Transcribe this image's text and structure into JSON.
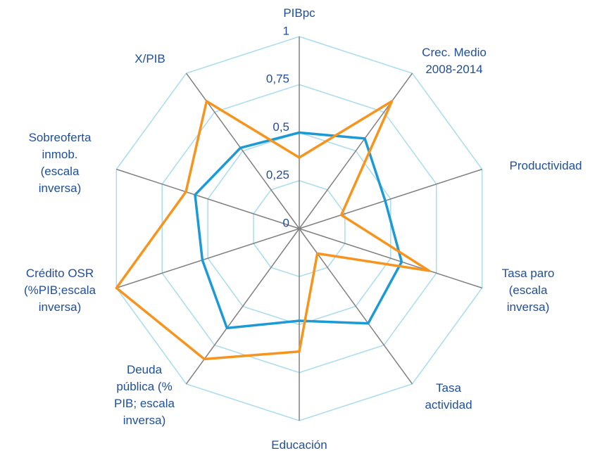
{
  "chart_data": {
    "type": "radar",
    "categories": [
      "PIBpc",
      "Crec. Medio\n2008-2014",
      "Productividad",
      "Tasa paro\n(escala\ninversa)",
      "Tasa\nactividad",
      "Educación",
      "Deuda\npública (%\nPIB; escala\ninversa)",
      "Crédito OSR\n(%PIB;escala\ninversa)",
      "Sobreoferta\ninmob.\n(escala\ninversa)",
      "X/PIB"
    ],
    "series": [
      {
        "color": "#1b9ad6",
        "values": [
          0.5,
          0.58,
          0.47,
          0.56,
          0.61,
          0.48,
          0.64,
          0.53,
          0.57,
          0.52
        ]
      },
      {
        "color": "#f7941d",
        "values": [
          0.37,
          0.82,
          0.23,
          0.71,
          0.16,
          0.64,
          0.84,
          1,
          0.62,
          0.82
        ]
      }
    ],
    "ylim": [
      0,
      1
    ],
    "yticks": [
      0,
      {
        "value": 0.25,
        "label": "0,25"
      },
      {
        "value": 0.5,
        "label": "0,5"
      },
      {
        "value": 0.75,
        "label": "0,75"
      },
      1
    ],
    "grid": true
  }
}
